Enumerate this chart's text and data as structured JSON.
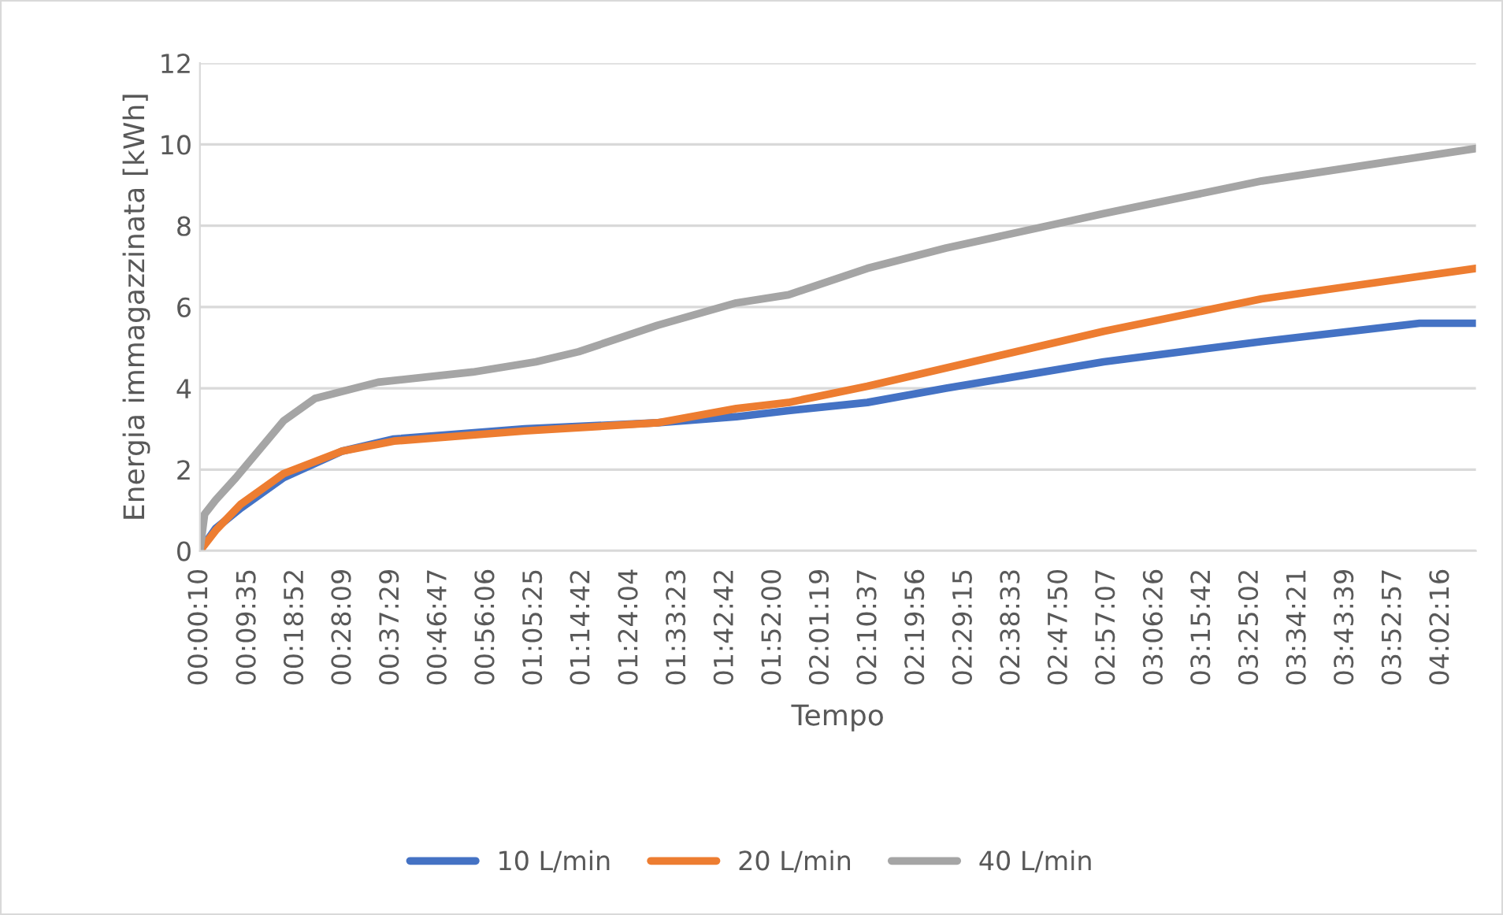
{
  "chart_data": {
    "type": "line",
    "xlabel": "Tempo",
    "ylabel": "Energia immagazzinata [kWh]",
    "xlim": [
      0.0028,
      4.15
    ],
    "ylim": [
      0,
      12
    ],
    "yticks": [
      0,
      2,
      4,
      6,
      8,
      10,
      12
    ],
    "xticks": [
      {
        "value": 0.0028,
        "label": "00:00:10"
      },
      {
        "value": 0.1597,
        "label": "00:09:35"
      },
      {
        "value": 0.3144,
        "label": "00:18:52"
      },
      {
        "value": 0.4692,
        "label": "00:28:09"
      },
      {
        "value": 0.6247,
        "label": "00:37:29"
      },
      {
        "value": 0.7797,
        "label": "00:46:47"
      },
      {
        "value": 0.935,
        "label": "00:56:06"
      },
      {
        "value": 1.0903,
        "label": "01:05:25"
      },
      {
        "value": 1.245,
        "label": "01:14:42"
      },
      {
        "value": 1.4011,
        "label": "01:24:04"
      },
      {
        "value": 1.5564,
        "label": "01:33:23"
      },
      {
        "value": 1.7117,
        "label": "01:42:42"
      },
      {
        "value": 1.8667,
        "label": "01:52:00"
      },
      {
        "value": 2.0219,
        "label": "02:01:19"
      },
      {
        "value": 2.1769,
        "label": "02:10:37"
      },
      {
        "value": 2.3322,
        "label": "02:19:56"
      },
      {
        "value": 2.4875,
        "label": "02:29:15"
      },
      {
        "value": 2.6425,
        "label": "02:38:33"
      },
      {
        "value": 2.7972,
        "label": "02:47:50"
      },
      {
        "value": 2.9519,
        "label": "02:57:07"
      },
      {
        "value": 3.1072,
        "label": "03:06:26"
      },
      {
        "value": 3.2617,
        "label": "03:15:42"
      },
      {
        "value": 3.4172,
        "label": "03:25:02"
      },
      {
        "value": 3.5725,
        "label": "03:34:21"
      },
      {
        "value": 3.7275,
        "label": "03:43:39"
      },
      {
        "value": 3.8825,
        "label": "03:52:57"
      },
      {
        "value": 4.0378,
        "label": "04:02:16"
      }
    ],
    "grid": "y",
    "legend": "bottom",
    "marker": "none",
    "line_style": "solid",
    "series": [
      {
        "name": "10 L/min",
        "color": "#4472c4",
        "x": [
          0.0028,
          0.054,
          0.136,
          0.275,
          0.464,
          0.633,
          1.059,
          1.49,
          1.746,
          1.916,
          2.172,
          2.428,
          2.94,
          3.454,
          3.967,
          4.15
        ],
        "values": [
          0,
          0.55,
          1.05,
          1.8,
          2.45,
          2.75,
          3.0,
          3.15,
          3.3,
          3.45,
          3.65,
          4.0,
          4.65,
          5.15,
          5.6,
          5.6
        ]
      },
      {
        "name": "20 L/min",
        "color": "#ed7d31",
        "x": [
          0.0028,
          0.054,
          0.136,
          0.275,
          0.464,
          0.633,
          1.059,
          1.49,
          1.746,
          1.916,
          2.172,
          2.428,
          2.94,
          3.454,
          4.15
        ],
        "values": [
          0,
          0.5,
          1.15,
          1.9,
          2.45,
          2.7,
          2.95,
          3.15,
          3.5,
          3.65,
          4.05,
          4.5,
          5.4,
          6.2,
          6.95
        ]
      },
      {
        "name": "40 L/min",
        "color": "#a5a5a5",
        "x": [
          0.0028,
          0.018,
          0.054,
          0.12,
          0.275,
          0.377,
          0.582,
          0.89,
          1.095,
          1.234,
          1.49,
          1.746,
          1.916,
          2.172,
          2.428,
          2.94,
          3.454,
          4.15
        ],
        "values": [
          0,
          0.9,
          1.25,
          1.8,
          3.2,
          3.75,
          4.15,
          4.4,
          4.65,
          4.9,
          5.55,
          6.1,
          6.3,
          6.95,
          7.45,
          8.3,
          9.1,
          9.9
        ]
      }
    ]
  }
}
